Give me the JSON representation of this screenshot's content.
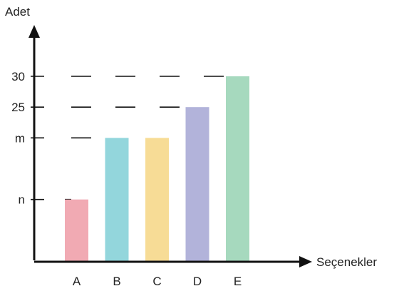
{
  "chart_data": {
    "type": "bar",
    "title": "",
    "ylabel": "Adet",
    "xlabel": "Seçenekler",
    "categories": [
      "A",
      "B",
      "C",
      "D",
      "E"
    ],
    "y_ticks": [
      {
        "label": "n",
        "value": 10
      },
      {
        "label": "m",
        "value": 20
      },
      {
        "label": "25",
        "value": 25
      },
      {
        "label": "30",
        "value": 30
      }
    ],
    "values": [
      10,
      20,
      20,
      25,
      30
    ],
    "ylim": [
      0,
      38
    ],
    "grid": "dashed",
    "colors": [
      "#f1aab3",
      "#93d6dc",
      "#f7dc96",
      "#b2b3da",
      "#a6d9be"
    ],
    "axis_color": "#111111"
  }
}
